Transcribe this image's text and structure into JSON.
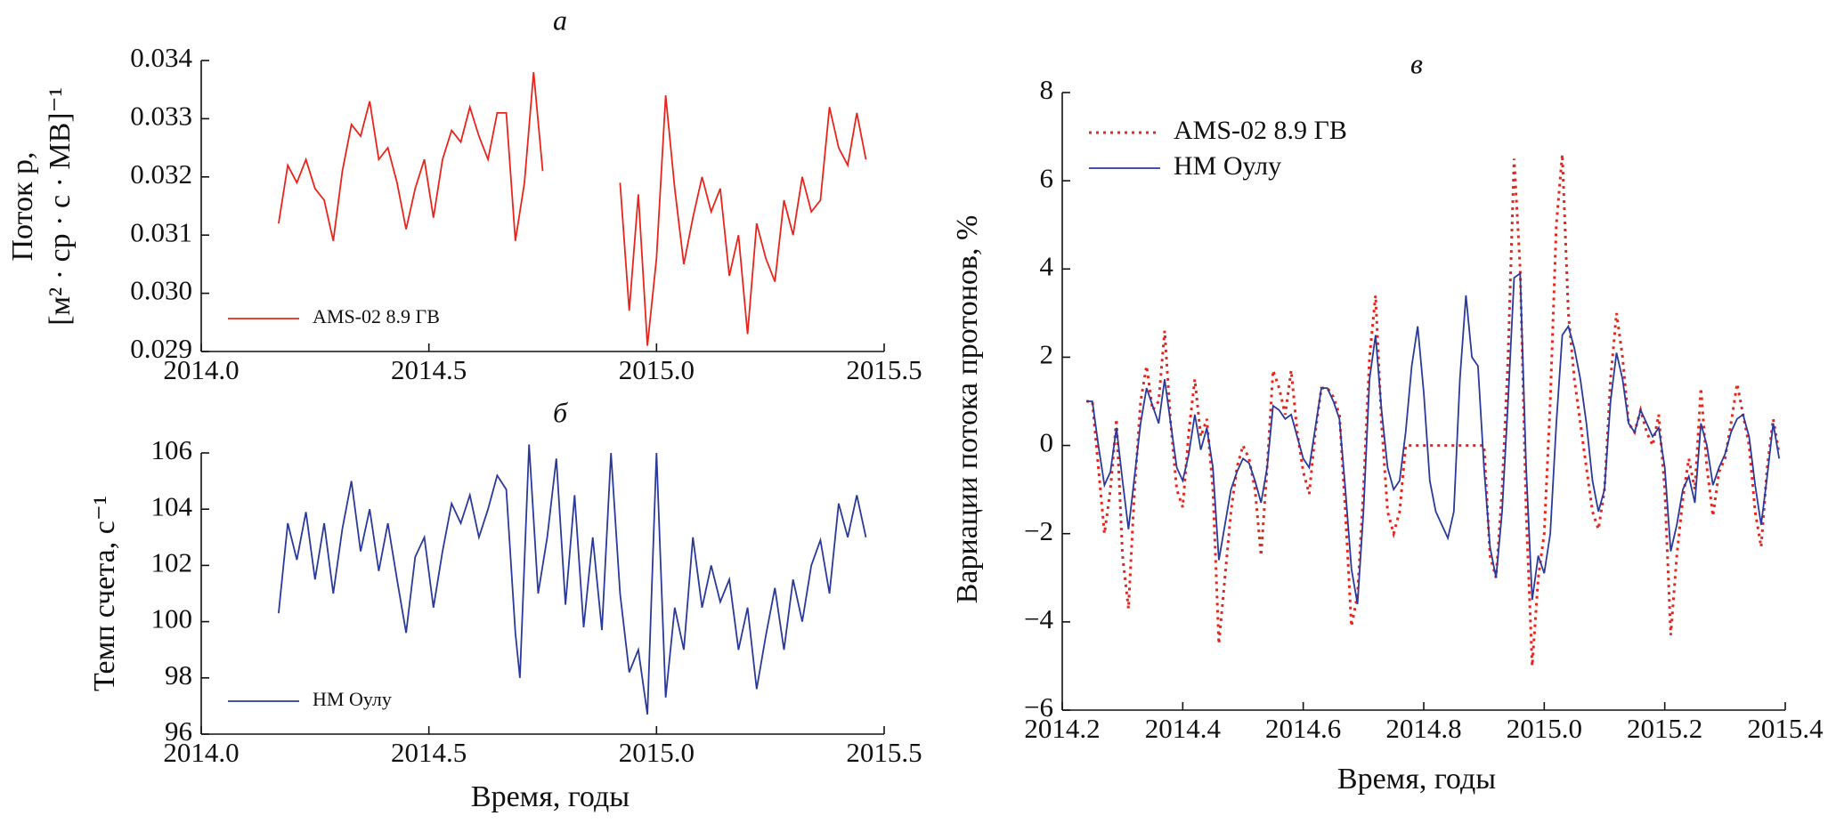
{
  "chart_data": [
    {
      "type": "line",
      "title": "а",
      "ylabel": [
        "Поток p,",
        "[м² · ср · с · МВ]⁻¹"
      ],
      "xlim": [
        2014.0,
        2015.5
      ],
      "xticks": [
        {
          "value": 2014.0,
          "label": "2014.0"
        },
        2014.5,
        {
          "value": 2015.0,
          "label": "2015.0"
        },
        2015.5
      ],
      "ylim": [
        0.029,
        0.034
      ],
      "yticks": [
        0.029,
        {
          "value": 0.03,
          "label": "0.030"
        },
        0.031,
        0.032,
        0.033,
        0.034
      ],
      "legend": "lower left",
      "x": [
        2014.17,
        2014.19,
        2014.21,
        2014.23,
        2014.25,
        2014.27,
        2014.29,
        2014.31,
        2014.33,
        2014.35,
        2014.37,
        2014.39,
        2014.41,
        2014.43,
        2014.45,
        2014.47,
        2014.49,
        2014.51,
        2014.53,
        2014.55,
        2014.57,
        2014.59,
        2014.61,
        2014.63,
        2014.65,
        2014.67,
        2014.69,
        2014.71,
        2014.73,
        2014.75,
        2014.83,
        2014.92,
        2014.94,
        2014.96,
        2014.98,
        2015.0,
        2015.02,
        2015.04,
        2015.06,
        2015.08,
        2015.1,
        2015.12,
        2015.14,
        2015.16,
        2015.18,
        2015.2,
        2015.22,
        2015.24,
        2015.26,
        2015.28,
        2015.3,
        2015.32,
        2015.34,
        2015.36,
        2015.38,
        2015.4,
        2015.42,
        2015.44,
        2015.46
      ],
      "series": [
        {
          "name": "AMS-02 8.9 ГВ",
          "color": "#e8251c",
          "values": [
            0.0312,
            0.0322,
            0.0319,
            0.0323,
            0.0318,
            0.0316,
            0.0309,
            0.0321,
            0.0329,
            0.0327,
            0.0333,
            0.0323,
            0.0325,
            0.0319,
            0.0311,
            0.0318,
            0.0323,
            0.0313,
            0.0323,
            0.0328,
            0.0326,
            0.0332,
            0.0327,
            0.0323,
            0.0331,
            0.0331,
            0.0309,
            0.0319,
            0.0338,
            0.0321,
            null,
            0.0319,
            0.0297,
            0.0317,
            0.0291,
            0.0306,
            0.0334,
            0.0318,
            0.0305,
            0.0313,
            0.032,
            0.0314,
            0.0318,
            0.0303,
            0.031,
            0.0293,
            0.0312,
            0.0306,
            0.0302,
            0.0316,
            0.031,
            0.032,
            0.0314,
            0.0316,
            0.0332,
            0.0325,
            0.0322,
            0.0331,
            0.0323
          ]
        }
      ]
    },
    {
      "type": "line",
      "title": "б",
      "ylabel": [
        "Темп счета, с⁻¹"
      ],
      "xlabel": "Время, годы",
      "xlim": [
        2014.0,
        2015.5
      ],
      "xticks": [
        {
          "value": 2014.0,
          "label": "2014.0"
        },
        2014.5,
        {
          "value": 2015.0,
          "label": "2015.0"
        },
        2015.5
      ],
      "ylim": [
        96,
        106
      ],
      "yticks": [
        96,
        98,
        100,
        102,
        104,
        106
      ],
      "legend": "lower left",
      "x": [
        2014.17,
        2014.19,
        2014.21,
        2014.23,
        2014.25,
        2014.27,
        2014.29,
        2014.31,
        2014.33,
        2014.35,
        2014.37,
        2014.39,
        2014.41,
        2014.43,
        2014.45,
        2014.47,
        2014.49,
        2014.51,
        2014.53,
        2014.55,
        2014.57,
        2014.59,
        2014.61,
        2014.63,
        2014.65,
        2014.67,
        2014.69,
        2014.7,
        2014.72,
        2014.74,
        2014.76,
        2014.78,
        2014.8,
        2014.82,
        2014.84,
        2014.86,
        2014.88,
        2014.9,
        2014.92,
        2014.94,
        2014.96,
        2014.98,
        2015.0,
        2015.02,
        2015.04,
        2015.06,
        2015.08,
        2015.1,
        2015.12,
        2015.14,
        2015.16,
        2015.18,
        2015.2,
        2015.22,
        2015.24,
        2015.26,
        2015.28,
        2015.3,
        2015.32,
        2015.34,
        2015.36,
        2015.38,
        2015.4,
        2015.42,
        2015.44,
        2015.46
      ],
      "series": [
        {
          "name": "НМ Оулу",
          "color": "#2a3a9a",
          "values": [
            100.3,
            103.5,
            102.2,
            103.9,
            101.5,
            103.5,
            101.0,
            103.3,
            105.0,
            102.5,
            104.0,
            101.8,
            103.5,
            101.5,
            99.6,
            102.3,
            103.0,
            100.5,
            102.5,
            104.2,
            103.5,
            104.5,
            103.0,
            104.0,
            105.2,
            104.7,
            99.6,
            98.0,
            106.3,
            101.0,
            103.0,
            105.8,
            100.6,
            104.5,
            99.8,
            103.0,
            99.7,
            106.0,
            101.0,
            98.2,
            99.0,
            96.7,
            106.0,
            97.3,
            100.5,
            99.0,
            103.0,
            100.5,
            102.0,
            100.7,
            101.5,
            99.0,
            100.5,
            97.6,
            99.5,
            101.2,
            99.0,
            101.5,
            100.0,
            102.0,
            102.9,
            101.0,
            104.2,
            103.0,
            104.5,
            103.0
          ]
        }
      ]
    },
    {
      "type": "line",
      "title": "в",
      "ylabel": [
        "Вариации потока протонов, %"
      ],
      "xlabel": "Время, годы",
      "xlim": [
        2014.2,
        2015.4
      ],
      "xticks": [
        2014.2,
        2014.4,
        2014.6,
        2014.8,
        {
          "value": 2015.0,
          "label": "2015.0"
        },
        2015.2,
        2015.4
      ],
      "ylim": [
        -6,
        8
      ],
      "yticks": [
        {
          "value": -6,
          "label": "−6"
        },
        {
          "value": -4,
          "label": "−4"
        },
        {
          "value": -2,
          "label": "−2"
        },
        0,
        2,
        4,
        6,
        8
      ],
      "legend": "upper left",
      "x": [
        2014.24,
        2014.25,
        2014.26,
        2014.27,
        2014.28,
        2014.29,
        2014.3,
        2014.31,
        2014.32,
        2014.33,
        2014.34,
        2014.35,
        2014.36,
        2014.37,
        2014.38,
        2014.39,
        2014.4,
        2014.41,
        2014.42,
        2014.43,
        2014.44,
        2014.45,
        2014.46,
        2014.47,
        2014.48,
        2014.49,
        2014.5,
        2014.51,
        2014.52,
        2014.53,
        2014.54,
        2014.55,
        2014.56,
        2014.57,
        2014.58,
        2014.59,
        2014.6,
        2014.61,
        2014.62,
        2014.63,
        2014.64,
        2014.65,
        2014.66,
        2014.67,
        2014.68,
        2014.69,
        2014.7,
        2014.71,
        2014.72,
        2014.73,
        2014.74,
        2014.75,
        2014.76,
        2014.77,
        2014.78,
        2014.79,
        2014.8,
        2014.81,
        2014.82,
        2014.83,
        2014.84,
        2014.85,
        2014.86,
        2014.87,
        2014.88,
        2014.89,
        2014.9,
        2014.91,
        2014.92,
        2014.93,
        2014.94,
        2014.95,
        2014.96,
        2014.97,
        2014.98,
        2014.99,
        2015.0,
        2015.01,
        2015.02,
        2015.03,
        2015.04,
        2015.05,
        2015.06,
        2015.07,
        2015.08,
        2015.09,
        2015.1,
        2015.11,
        2015.12,
        2015.13,
        2015.14,
        2015.15,
        2015.16,
        2015.17,
        2015.18,
        2015.19,
        2015.2,
        2015.21,
        2015.22,
        2015.23,
        2015.24,
        2015.25,
        2015.26,
        2015.27,
        2015.28,
        2015.29,
        2015.3,
        2015.31,
        2015.32,
        2015.33,
        2015.34,
        2015.35,
        2015.36,
        2015.37,
        2015.38,
        2015.39
      ],
      "series": [
        {
          "name": "AMS-02 8.9 ГВ",
          "color": "#e8251c",
          "linestyle": "dotted",
          "values": [
            1.0,
            1.0,
            -0.5,
            -2.0,
            -1.0,
            0.6,
            -2.5,
            -3.7,
            -1.0,
            1.0,
            1.8,
            0.8,
            1.0,
            2.6,
            0.5,
            -1.0,
            -1.4,
            0.3,
            1.5,
            0.2,
            0.6,
            -1.0,
            -4.5,
            -3.0,
            -1.5,
            -0.5,
            0.0,
            -0.3,
            -1.0,
            -2.5,
            -0.5,
            1.7,
            1.3,
            0.7,
            1.7,
            0.3,
            -0.6,
            -1.1,
            0.3,
            1.3,
            1.3,
            1.1,
            0.7,
            -1.5,
            -4.1,
            -3.4,
            -1.0,
            2.0,
            3.4,
            0.5,
            -1.5,
            -2.0,
            -1.5,
            0.0,
            0.0,
            0.0,
            0.0,
            0.0,
            0.0,
            0.0,
            0.0,
            0.0,
            0.0,
            0.0,
            0.0,
            0.0,
            0.0,
            -2.5,
            -3.0,
            -1.0,
            2.0,
            6.5,
            4.0,
            -1.5,
            -5.0,
            -3.0,
            -2.0,
            1.0,
            5.0,
            6.6,
            3.0,
            1.5,
            0.5,
            -0.5,
            -1.5,
            -1.9,
            -1.0,
            1.5,
            3.0,
            2.0,
            0.5,
            0.3,
            0.8,
            0.3,
            0.0,
            0.7,
            -1.0,
            -4.3,
            -2.5,
            -1.2,
            -0.3,
            -1.0,
            1.3,
            -0.5,
            -1.6,
            -0.6,
            -0.3,
            0.5,
            1.4,
            0.7,
            0.0,
            -1.5,
            -2.3,
            -0.5,
            0.6,
            -0.2
          ]
        },
        {
          "name": "НМ Оулу",
          "color": "#2a3a9a",
          "linestyle": "solid",
          "values": [
            1.0,
            1.0,
            0.0,
            -0.9,
            -0.6,
            0.4,
            -0.8,
            -1.9,
            -0.7,
            0.5,
            1.3,
            0.9,
            0.5,
            1.5,
            0.5,
            -0.5,
            -0.8,
            -0.2,
            0.7,
            -0.1,
            0.4,
            -0.5,
            -2.6,
            -1.8,
            -1.0,
            -0.6,
            -0.3,
            -0.4,
            -0.8,
            -1.3,
            -0.5,
            0.9,
            0.8,
            0.6,
            0.7,
            0.2,
            -0.3,
            -0.5,
            0.4,
            1.3,
            1.3,
            1.0,
            0.6,
            -1.0,
            -2.8,
            -3.6,
            -1.5,
            1.5,
            2.5,
            0.8,
            -0.5,
            -1.0,
            -0.8,
            0.3,
            1.8,
            2.7,
            1.2,
            -0.8,
            -1.5,
            -1.8,
            -2.1,
            -1.5,
            1.5,
            3.4,
            2.0,
            1.8,
            -0.5,
            -2.3,
            -3.0,
            -1.5,
            1.0,
            3.8,
            3.9,
            -0.5,
            -3.5,
            -2.5,
            -2.9,
            -2.0,
            0.5,
            2.5,
            2.7,
            2.2,
            1.5,
            0.5,
            -0.8,
            -1.5,
            -1.0,
            1.0,
            2.1,
            1.5,
            0.5,
            0.3,
            0.8,
            0.5,
            0.2,
            0.4,
            -0.5,
            -2.4,
            -1.8,
            -1.0,
            -0.7,
            -1.3,
            0.5,
            0.0,
            -0.9,
            -0.5,
            -0.2,
            0.3,
            0.6,
            0.7,
            0.2,
            -0.9,
            -1.8,
            -0.7,
            0.5,
            -0.3
          ]
        }
      ]
    }
  ]
}
